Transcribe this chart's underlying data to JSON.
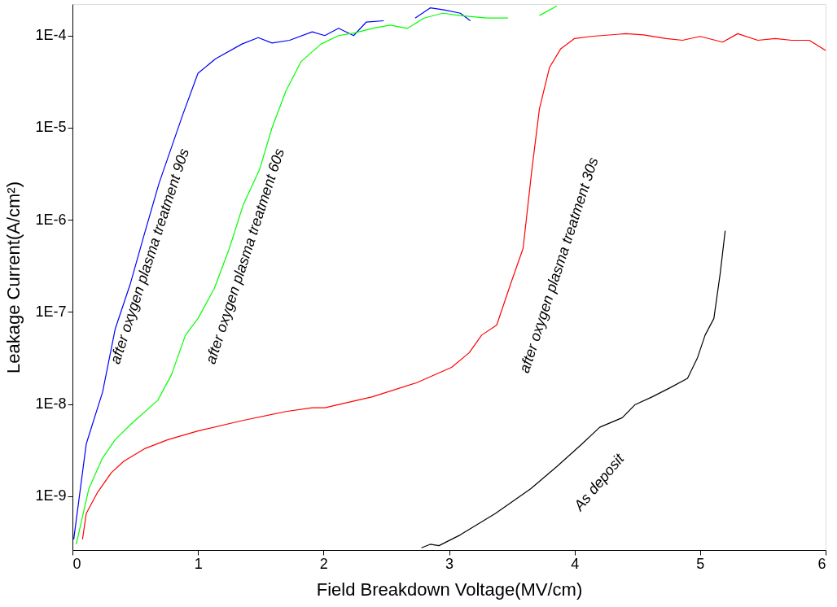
{
  "chart_data": {
    "type": "line",
    "xlabel": "Field Breakdown Voltage(MV/cm)",
    "ylabel": "Leakage Current(A/cm²)",
    "log": "y",
    "grid": false,
    "marker": "none",
    "line_style": "solid",
    "xlim": [
      0,
      6
    ],
    "xticks": [
      0,
      1,
      2,
      3,
      4,
      5,
      6
    ],
    "ylim": [
      2.6e-10,
      0.00022
    ],
    "yticks": [
      {
        "value": 1e-09,
        "label": "1E-9"
      },
      {
        "value": 1e-08,
        "label": "1E-8"
      },
      {
        "value": 1e-07,
        "label": "1E-7"
      },
      {
        "value": 1e-06,
        "label": "1E-6"
      },
      {
        "value": 1e-05,
        "label": "1E-5"
      },
      {
        "value": 0.0001,
        "label": "1E-4"
      }
    ],
    "series": [
      {
        "color": "#0000ff",
        "x": [
          0.01,
          0.11,
          0.24,
          0.34,
          0.46,
          0.57,
          0.69,
          0.88,
          1.0,
          1.14,
          1.35,
          1.48,
          1.59,
          1.73,
          1.91,
          2.01,
          2.12,
          2.24,
          2.34,
          2.48,
          2.6,
          2.73,
          2.85,
          2.96,
          3.09,
          3.17
        ],
        "values": [
          3.4e-10,
          3.7e-09,
          1.35e-08,
          6.5e-08,
          2e-07,
          6.8e-07,
          2.5e-06,
          1.4e-05,
          3.9e-05,
          5.6e-05,
          8.1e-05,
          9.5e-05,
          8.3e-05,
          8.9e-05,
          0.00011,
          0.0001,
          0.00012,
          0.0001,
          0.00014,
          0.000145,
          null,
          0.000155,
          0.0002,
          0.00019,
          0.000175,
          0.000145
        ]
      },
      {
        "color": "#00ff00",
        "x": [
          0.03,
          0.13,
          0.24,
          0.34,
          0.48,
          0.68,
          0.79,
          0.9,
          1.0,
          1.13,
          1.25,
          1.36,
          1.49,
          1.59,
          1.7,
          1.82,
          1.98,
          2.12,
          2.25,
          2.39,
          2.53,
          2.67,
          2.8,
          2.95,
          3.09,
          3.3,
          3.47,
          3.59,
          3.72,
          3.86
        ],
        "values": [
          3e-10,
          1.2e-09,
          2.6e-09,
          4.1e-09,
          6.3e-09,
          1.1e-08,
          2.1e-08,
          5.6e-08,
          8.5e-08,
          1.8e-07,
          4.9e-07,
          1.45e-06,
          3.5e-06,
          1e-05,
          2.5e-05,
          5.2e-05,
          8.1e-05,
          0.0001,
          0.000107,
          0.00012,
          0.00013,
          0.00012,
          0.000155,
          0.000175,
          0.000165,
          0.000155,
          0.000155,
          null,
          0.000165,
          0.00021
        ]
      },
      {
        "color": "#ff0000",
        "x": [
          0.08,
          0.11,
          0.2,
          0.31,
          0.41,
          0.58,
          0.76,
          1.0,
          1.35,
          1.7,
          1.91,
          2.01,
          2.39,
          2.74,
          3.02,
          3.16,
          3.26,
          3.38,
          3.49,
          3.59,
          3.66,
          3.72,
          3.8,
          3.89,
          4.0,
          4.13,
          4.41,
          4.55,
          4.73,
          4.86,
          5.0,
          5.18,
          5.3,
          5.46,
          5.6,
          5.73,
          5.87,
          6.0
        ],
        "values": [
          3.4e-10,
          6.5e-10,
          1.1e-09,
          1.8e-09,
          2.4e-09,
          3.3e-09,
          4.1e-09,
          5.1e-09,
          6.6e-09,
          8.3e-09,
          9.1e-09,
          9.1e-09,
          1.2e-08,
          1.7e-08,
          2.5e-08,
          3.6e-08,
          5.6e-08,
          7.2e-08,
          2e-07,
          4.9e-07,
          3.5e-06,
          1.6e-05,
          4.5e-05,
          7.2e-05,
          9.3e-05,
          9.8e-05,
          0.000105,
          0.000102,
          9.3e-05,
          8.9e-05,
          9.8e-05,
          8.5e-05,
          0.000105,
          8.9e-05,
          9.3e-05,
          8.9e-05,
          8.9e-05,
          6.9e-05
        ]
      },
      {
        "color": "#000000",
        "x": [
          2.78,
          2.85,
          2.92,
          3.09,
          3.37,
          3.65,
          3.86,
          4.06,
          4.2,
          4.38,
          4.48,
          4.62,
          4.76,
          4.9,
          4.98,
          5.04,
          5.11,
          5.16,
          5.2
        ],
        "values": [
          2.75e-10,
          3e-10,
          2.9e-10,
          3.8e-10,
          6.5e-10,
          1.2e-09,
          2.1e-09,
          3.7e-09,
          5.6e-09,
          7.1e-09,
          9.8e-09,
          1.2e-08,
          1.5e-08,
          1.9e-08,
          3.2e-08,
          5.6e-08,
          8.5e-08,
          2.6e-07,
          7.6e-07
        ]
      }
    ],
    "annotations": [
      "after oxygen plasma treatment 90s",
      "after oxygen plasma treatment 60s",
      "after oxygen plasma treatment 30s",
      "As deposit"
    ]
  }
}
